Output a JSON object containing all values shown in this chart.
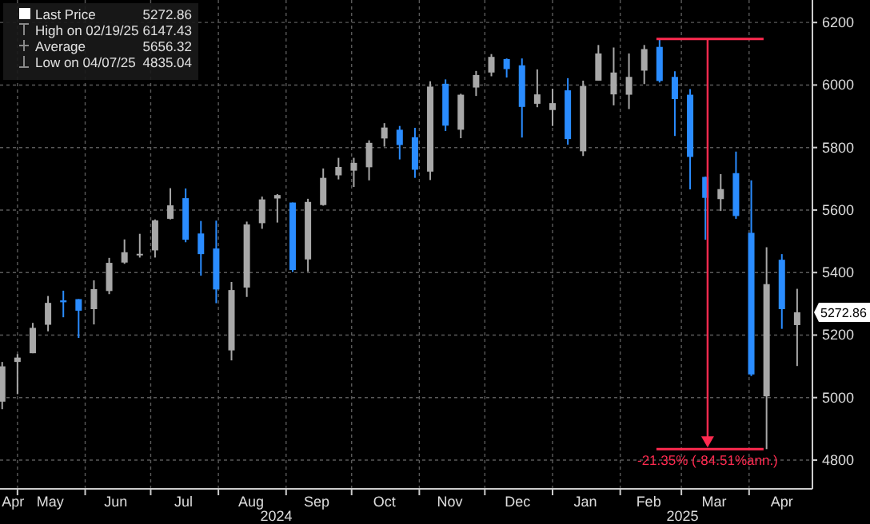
{
  "chart_data": {
    "type": "candlestick",
    "x": [
      "2024-04-24",
      "2024-05-01",
      "2024-05-08",
      "2024-05-15",
      "2024-05-22",
      "2024-05-29",
      "2024-06-05",
      "2024-06-12",
      "2024-06-19",
      "2024-06-26",
      "2024-07-03",
      "2024-07-10",
      "2024-07-17",
      "2024-07-24",
      "2024-07-31",
      "2024-08-07",
      "2024-08-14",
      "2024-08-21",
      "2024-08-28",
      "2024-09-04",
      "2024-09-11",
      "2024-09-18",
      "2024-09-25",
      "2024-10-02",
      "2024-10-09",
      "2024-10-16",
      "2024-10-23",
      "2024-10-30",
      "2024-11-06",
      "2024-11-13",
      "2024-11-20",
      "2024-11-27",
      "2024-12-04",
      "2024-12-11",
      "2024-12-18",
      "2024-12-25",
      "2025-01-01",
      "2025-01-08",
      "2025-01-15",
      "2025-01-22",
      "2025-01-29",
      "2025-02-05",
      "2025-02-12",
      "2025-02-19",
      "2025-02-26",
      "2025-03-05",
      "2025-03-12",
      "2025-03-19",
      "2025-03-26",
      "2025-04-02",
      "2025-04-09",
      "2025-04-16",
      "2025-04-23"
    ],
    "ohlc": [
      [
        4987,
        5114,
        4963,
        5100
      ],
      [
        5114,
        5139,
        5011,
        5128
      ],
      [
        5142,
        5239,
        5142,
        5223
      ],
      [
        5233,
        5325,
        5212,
        5303
      ],
      [
        5311,
        5342,
        5257,
        5305
      ],
      [
        5315,
        5315,
        5191,
        5278
      ],
      [
        5283,
        5375,
        5234,
        5347
      ],
      [
        5341,
        5447,
        5331,
        5431
      ],
      [
        5432,
        5506,
        5428,
        5465
      ],
      [
        5459,
        5524,
        5448,
        5460
      ],
      [
        5471,
        5570,
        5448,
        5567
      ],
      [
        5572,
        5670,
        5570,
        5615
      ],
      [
        5638,
        5669,
        5497,
        5505
      ],
      [
        5525,
        5565,
        5390,
        5459
      ],
      [
        5477,
        5566,
        5302,
        5346
      ],
      [
        5151,
        5370,
        5119,
        5344
      ],
      [
        5352,
        5563,
        5322,
        5554
      ],
      [
        5558,
        5643,
        5540,
        5634
      ],
      [
        5637,
        5651,
        5560,
        5648
      ],
      [
        5624,
        5624,
        5402,
        5408
      ],
      [
        5442,
        5636,
        5403,
        5626
      ],
      [
        5616,
        5733,
        5614,
        5703
      ],
      [
        5711,
        5767,
        5698,
        5738
      ],
      [
        5726,
        5767,
        5674,
        5751
      ],
      [
        5737,
        5823,
        5695,
        5815
      ],
      [
        5829,
        5878,
        5803,
        5864
      ],
      [
        5857,
        5869,
        5762,
        5808
      ],
      [
        5833,
        5863,
        5703,
        5729
      ],
      [
        5723,
        6012,
        5696,
        5995
      ],
      [
        6004,
        6018,
        5853,
        5870
      ],
      [
        5857,
        5972,
        5830,
        5969
      ],
      [
        5992,
        6045,
        5965,
        6032
      ],
      [
        6040,
        6099,
        6028,
        6090
      ],
      [
        6083,
        6085,
        6024,
        6051
      ],
      [
        6063,
        6085,
        5832,
        5930
      ],
      [
        5940,
        6050,
        5929,
        5970
      ],
      [
        5920,
        5988,
        5869,
        5942
      ],
      [
        5983,
        6022,
        5809,
        5827
      ],
      [
        5788,
        6014,
        5773,
        5997
      ],
      [
        6014,
        6128,
        6014,
        6101
      ],
      [
        5970,
        6120,
        5935,
        6040
      ],
      [
        5969,
        6101,
        5923,
        6026
      ],
      [
        6046,
        6128,
        6003,
        6115
      ],
      [
        6122,
        6147.43,
        6008,
        6013
      ],
      [
        6026,
        6044,
        5837,
        5955
      ],
      [
        5969,
        5987,
        5666,
        5770
      ],
      [
        5706,
        5707,
        5505,
        5639
      ],
      [
        5635,
        5715,
        5597,
        5667
      ],
      [
        5718,
        5787,
        5572,
        5581
      ],
      [
        5527,
        5695,
        5069,
        5074
      ],
      [
        5004,
        5481,
        4835.04,
        5363
      ],
      [
        5441,
        5459,
        5220,
        5283
      ],
      [
        5232,
        5348,
        5101,
        5272.86
      ]
    ],
    "colors": [
      "#a8a8a8",
      "#a8a8a8",
      "#a8a8a8",
      "#a8a8a8",
      "#2a8cff",
      "#2a8cff",
      "#a8a8a8",
      "#a8a8a8",
      "#a8a8a8",
      "#a8a8a8",
      "#a8a8a8",
      "#a8a8a8",
      "#2a8cff",
      "#2a8cff",
      "#2a8cff",
      "#a8a8a8",
      "#a8a8a8",
      "#a8a8a8",
      "#a8a8a8",
      "#2a8cff",
      "#a8a8a8",
      "#a8a8a8",
      "#a8a8a8",
      "#a8a8a8",
      "#a8a8a8",
      "#a8a8a8",
      "#2a8cff",
      "#2a8cff",
      "#a8a8a8",
      "#2a8cff",
      "#a8a8a8",
      "#a8a8a8",
      "#a8a8a8",
      "#2a8cff",
      "#2a8cff",
      "#a8a8a8",
      "#a8a8a8",
      "#2a8cff",
      "#a8a8a8",
      "#a8a8a8",
      "#a8a8a8",
      "#a8a8a8",
      "#a8a8a8",
      "#2a8cff",
      "#2a8cff",
      "#2a8cff",
      "#2a8cff",
      "#a8a8a8",
      "#2a8cff",
      "#2a8cff",
      "#a8a8a8",
      "#2a8cff",
      "#a8a8a8"
    ],
    "xlim": [
      "2024-04-23",
      "2025-04-30"
    ],
    "xticks": [
      {
        "value": "2024-05-01",
        "label": null
      },
      {
        "value": "2024-06-01",
        "label": null
      },
      {
        "value": "2024-07-01",
        "label": null
      },
      {
        "value": "2024-08-01",
        "label": null
      },
      {
        "value": "2024-09-01",
        "label": null
      },
      {
        "value": "2024-10-01",
        "label": null
      },
      {
        "value": "2024-11-01",
        "label": null
      },
      {
        "value": "2024-12-01",
        "label": null
      },
      {
        "value": "2025-01-01",
        "label": null
      },
      {
        "value": "2025-02-01",
        "label": null
      },
      {
        "value": "2025-03-01",
        "label": null
      },
      {
        "value": "2025-04-01",
        "label": null
      },
      {
        "value": "2024-04-29",
        "label": "Apr"
      },
      {
        "value": "2024-05-16",
        "label": "May"
      },
      {
        "value": "2024-06-15",
        "label": "Jun"
      },
      {
        "value": "2024-07-16",
        "label": "Jul"
      },
      {
        "value": "2024-08-16",
        "label": "Aug"
      },
      {
        "value": "2024-09-15",
        "label": "Sep"
      },
      {
        "value": "2024-10-16",
        "label": "Oct"
      },
      {
        "value": "2024-11-15",
        "label": "Nov"
      },
      {
        "value": "2024-12-16",
        "label": "Dec"
      },
      {
        "value": "2025-01-16",
        "label": "Jan"
      },
      {
        "value": "2025-02-14",
        "label": "Feb"
      },
      {
        "value": "2025-03-16",
        "label": "Mar"
      },
      {
        "value": "2025-04-16",
        "label": "Apr"
      }
    ],
    "ylim": [
      4708,
      6272
    ],
    "yticks": [
      4800,
      5000,
      5200,
      5400,
      5600,
      5800,
      6000,
      6200
    ],
    "grid": true,
    "ref_lines": [
      {
        "axis": "y",
        "value": 6147.43,
        "color": "#ff2a4f"
      },
      {
        "axis": "y",
        "value": 4835.04,
        "color": "#ff2a4f"
      }
    ],
    "annotations": [
      "Last Price",
      "5272.86",
      "High on 02/19/25",
      "6147.43",
      "Average",
      "5656.32",
      "Low on 04/07/25",
      "4835.04",
      {
        "text": "-21.35% (-84.51%ann.)",
        "x": "2025-03-13",
        "y": 4835.04
      },
      "5272.86",
      "2024",
      "2025"
    ]
  }
}
